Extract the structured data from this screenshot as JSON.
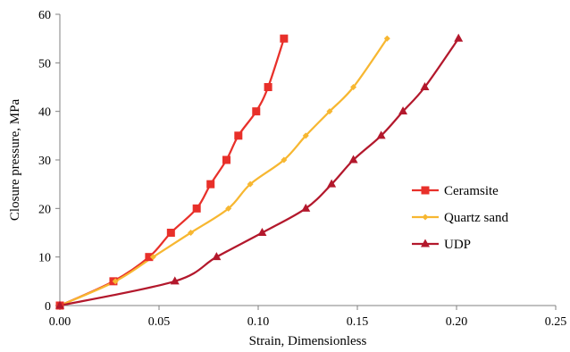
{
  "chart_data": {
    "type": "line",
    "title": "",
    "xlabel": "Strain, Dimensionless",
    "ylabel": "Closure pressure, MPa",
    "xlim": [
      0,
      0.25
    ],
    "ylim": [
      0,
      60
    ],
    "x_ticks": [
      "0.00",
      "0.05",
      "0.10",
      "0.15",
      "0.20",
      "0.25"
    ],
    "y_ticks": [
      "0",
      "10",
      "20",
      "30",
      "40",
      "50",
      "60"
    ],
    "grid": false,
    "legend_position": "right",
    "series": [
      {
        "name": "Ceramsite",
        "color": "#e8302a",
        "marker": "square",
        "points": [
          [
            0,
            0
          ],
          [
            0.027,
            5
          ],
          [
            0.045,
            10
          ],
          [
            0.056,
            15
          ],
          [
            0.069,
            20
          ],
          [
            0.076,
            25
          ],
          [
            0.084,
            30
          ],
          [
            0.09,
            35
          ],
          [
            0.099,
            40
          ],
          [
            0.105,
            45
          ],
          [
            0.113,
            55
          ]
        ]
      },
      {
        "name": "Quartz sand",
        "color": "#f7b731",
        "marker": "diamond",
        "points": [
          [
            0,
            0
          ],
          [
            0.028,
            5
          ],
          [
            0.047,
            10
          ],
          [
            0.066,
            15
          ],
          [
            0.085,
            20
          ],
          [
            0.096,
            25
          ],
          [
            0.113,
            30
          ],
          [
            0.124,
            35
          ],
          [
            0.136,
            40
          ],
          [
            0.148,
            45
          ],
          [
            0.165,
            55
          ]
        ]
      },
      {
        "name": "UDP",
        "color": "#b3182c",
        "marker": "triangle",
        "points": [
          [
            0,
            0
          ],
          [
            0.058,
            5
          ],
          [
            0.079,
            10
          ],
          [
            0.102,
            15
          ],
          [
            0.124,
            20
          ],
          [
            0.137,
            25
          ],
          [
            0.148,
            30
          ],
          [
            0.162,
            35
          ],
          [
            0.173,
            40
          ],
          [
            0.184,
            45
          ],
          [
            0.201,
            55
          ]
        ]
      }
    ]
  }
}
